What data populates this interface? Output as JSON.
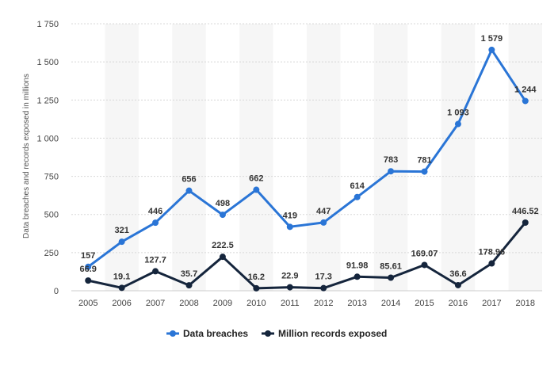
{
  "chart_data": {
    "type": "line",
    "title": "",
    "xlabel": "",
    "ylabel": "Data breaches and records exposed in millions",
    "ylim": [
      0,
      1750
    ],
    "yticks": [
      0,
      250,
      500,
      750,
      1000,
      1250,
      1500,
      1750
    ],
    "ytick_labels": [
      "0",
      "250",
      "500",
      "750",
      "1 000",
      "1 250",
      "1 500",
      "1 750"
    ],
    "grid": true,
    "legend_position": "bottom",
    "categories": [
      "2005",
      "2006",
      "2007",
      "2008",
      "2009",
      "2010",
      "2011",
      "2012",
      "2013",
      "2014",
      "2015",
      "2016",
      "2017",
      "2018"
    ],
    "series": [
      {
        "name": "Data breaches",
        "color": "#2a75d6",
        "values": [
          157,
          321,
          446,
          656,
          498,
          662,
          419,
          447,
          614,
          783,
          781,
          1093,
          1579,
          1244
        ],
        "labels": [
          "157",
          "321",
          "446",
          "656",
          "498",
          "662",
          "419",
          "447",
          "614",
          "783",
          "781",
          "1 093",
          "1 579",
          "1 244"
        ]
      },
      {
        "name": "Million records exposed",
        "color": "#15253c",
        "values": [
          66.9,
          19.1,
          127.7,
          35.7,
          222.5,
          16.2,
          22.9,
          17.3,
          91.98,
          85.61,
          169.07,
          36.6,
          178.96,
          446.52
        ],
        "labels": [
          "66.9",
          "19.1",
          "127.7",
          "35.7",
          "222.5",
          "16.2",
          "22.9",
          "17.3",
          "91.98",
          "85.61",
          "169.07",
          "36.6",
          "178.96",
          "446.52"
        ]
      }
    ]
  }
}
